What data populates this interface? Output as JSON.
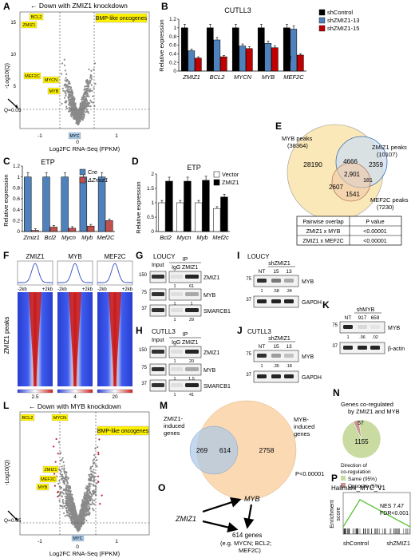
{
  "panels": {
    "A": {
      "letter": "A",
      "header": "← Down with ZMIZ1 knockdown",
      "header_gene": "ZMIZ1",
      "label_oncogenes": "BMP-like oncogenes",
      "genes": [
        "BCL2",
        "ZMIZ1",
        "MEF2C",
        "MYCN",
        "MYB",
        "MYC"
      ],
      "qlabel": "Q=0.05",
      "ylabel": "-Log10(Q)",
      "xlabel": "Log2FC RNA-Seq (FPKM)",
      "yticks": [
        "15",
        "10",
        "5"
      ],
      "xticks": [
        "-1",
        "0",
        "1"
      ]
    },
    "B": {
      "letter": "B",
      "title": "CUTLL3",
      "ylabel": "Relative expression",
      "legend": [
        "shControl",
        "shZMIZ1-13",
        "shZMIZ1-15"
      ],
      "yticks": [
        "0",
        "0.2",
        "0.4",
        "0.6",
        "0.8",
        "1",
        "1.2"
      ],
      "sig": [
        "ns"
      ]
    },
    "C": {
      "letter": "C",
      "title": "ETP",
      "ylabel": "Relative expression",
      "legend": [
        "Cre",
        "ΔZmiz1"
      ],
      "yticks": [
        "0",
        "0.2",
        "0.4",
        "0.6",
        "0.8",
        "1",
        "1.2"
      ]
    },
    "D": {
      "letter": "D",
      "title": "ETP",
      "ylabel": "Relative expression",
      "legend": [
        "Vector",
        "ZMIZ1"
      ],
      "yticks": [
        "0",
        "0.5",
        "1",
        "1.5",
        "2"
      ]
    },
    "E": {
      "letter": "E",
      "myb_label": "MYB peaks",
      "myb_count": "(38364)",
      "zmiz_label": "ZMIZ1 peaks",
      "zmiz_count": "(10107)",
      "mef_label": "MEF2C peaks",
      "mef_count": "(7230)",
      "regions": [
        "28190",
        "4666",
        "2359",
        "2,901",
        "181",
        "2607",
        "1541"
      ],
      "table_header": [
        "Pairwise overlap",
        "P value"
      ],
      "table_rows": [
        [
          "ZMIZ1 x MYB",
          "<0.00001"
        ],
        [
          "ZMIZ1 x MEF2C",
          "<0.00001"
        ]
      ]
    },
    "F": {
      "letter": "F",
      "cols": [
        "ZMIZ1",
        "MYB",
        "MEF2C"
      ],
      "axis_left": "-2kb",
      "axis_right": "+2kb",
      "ylabel": "ZMIZ1 peaks",
      "scale_max": [
        "2.5",
        "4",
        "20"
      ]
    },
    "G": {
      "letter": "G",
      "cell": "LOUCY",
      "input": "Input",
      "ip": "IP",
      "lanes": [
        "IgG",
        "ZMIZ1"
      ],
      "targets": [
        "ZMIZ1",
        "MYB",
        "SMARCB1"
      ],
      "markers": [
        "150",
        "75",
        "37"
      ],
      "quant": [
        [
          "1",
          "61"
        ],
        [
          "1",
          "1"
        ],
        [
          "1",
          "29"
        ]
      ]
    },
    "H": {
      "letter": "H",
      "cell": "CUTLL3",
      "input": "Input",
      "ip": "IP",
      "lanes": [
        "IgG",
        "ZMIZ1"
      ],
      "targets": [
        "ZMIZ1",
        "MYB",
        "SMARCB1"
      ],
      "markers": [
        "150",
        "75",
        "37"
      ],
      "quant": [
        [
          "1",
          "20"
        ],
        [
          "1",
          "1.5"
        ],
        [
          "1",
          "41"
        ]
      ]
    },
    "I": {
      "letter": "I",
      "cell": "LOUCY",
      "group": "shZMIZ1",
      "lanes": [
        "NT",
        "15",
        "13"
      ],
      "targets": [
        "MYB",
        "GAPDH"
      ],
      "markers": [
        "75",
        "37"
      ],
      "quant": [
        "1",
        ".58",
        ".34"
      ]
    },
    "J": {
      "letter": "J",
      "cell": "CUTLL3",
      "group": "shZMIZ1",
      "lanes": [
        "NT",
        "15",
        "13"
      ],
      "targets": [
        "MYB",
        "GAPDH"
      ],
      "markers": [
        "75",
        "37"
      ],
      "quant": [
        "1",
        ".35",
        ".18"
      ]
    },
    "K": {
      "letter": "K",
      "group": "shMYB",
      "lanes": [
        "NT",
        "917",
        "659"
      ],
      "targets": [
        "MYB",
        "β-actin"
      ],
      "markers": [
        "75",
        "37"
      ],
      "quant": [
        "1",
        ".06",
        ".02"
      ]
    },
    "L": {
      "letter": "L",
      "header": "← Down with MYB knockdown",
      "header_gene": "MYB",
      "label_oncogenes": "BMP-like oncogenes",
      "genes": [
        "BCL2",
        "MYCN",
        "ZMIZ1",
        "MEF2C",
        "MYB",
        "MYC"
      ],
      "qlabel": "Q=0.05",
      "ylabel": "-Log10(Q)",
      "xlabel": "Log2FC RNA-Seq (FPKM)",
      "xticks": [
        "-1",
        "0",
        "1"
      ]
    },
    "M": {
      "letter": "M",
      "left_label": [
        "ZMIZ1-",
        "induced",
        "genes"
      ],
      "right_label": [
        "MYB-",
        "induced",
        "genes"
      ],
      "values": [
        "269",
        "614",
        "2758"
      ],
      "pvalue": "P<0.00001"
    },
    "N": {
      "letter": "N",
      "title": [
        "Genes co-regulated",
        "by ZMIZ1 and MYB"
      ],
      "small": "57",
      "big": "1155",
      "legend_title": [
        "Direction of",
        "co-regulation"
      ],
      "legend": [
        "Same (95%)",
        "Opposite (5%)"
      ]
    },
    "O": {
      "letter": "O",
      "zmiz": "ZMIZ1",
      "myb": "MYB",
      "genes": "614 genes",
      "examples": "(e.g. MYCN; BCL2;",
      "examples2": "MEF2C)"
    },
    "P": {
      "letter": "P",
      "title": "Hallmark_MYC_V1",
      "nes": "NES 7.47",
      "fdr": "FDR<0.001",
      "ylabel": [
        "Enrichment",
        "score"
      ],
      "left": "shControl",
      "right": "shZMIZ1"
    }
  },
  "chart_data": [
    {
      "type": "bar",
      "panel": "B",
      "title": "CUTLL3",
      "ylabel": "Relative expression",
      "ylim": [
        0,
        1.2
      ],
      "categories": [
        "ZMIZ1",
        "BCL2",
        "MYCN",
        "MYB",
        "MEF2C"
      ],
      "series": [
        {
          "name": "shControl",
          "values": [
            1.0,
            1.0,
            1.0,
            1.0,
            1.0
          ],
          "color": "#000000"
        },
        {
          "name": "shZMIZ1-13",
          "values": [
            0.47,
            0.72,
            0.58,
            0.64,
            0.97
          ],
          "color": "#4f81bd"
        },
        {
          "name": "shZMIZ1-15",
          "values": [
            0.3,
            0.33,
            0.52,
            0.54,
            0.37
          ],
          "color": "#c00000"
        }
      ]
    },
    {
      "type": "bar",
      "panel": "C",
      "title": "ETP",
      "ylabel": "Relative expression",
      "ylim": [
        0,
        1.2
      ],
      "categories": [
        "Zmiz1",
        "Bcl2",
        "Mycn",
        "Myb",
        "Mef2C"
      ],
      "series": [
        {
          "name": "Cre",
          "values": [
            1.0,
            1.0,
            1.0,
            1.0,
            1.0
          ],
          "color": "#4f81bd"
        },
        {
          "name": "ΔZmiz1",
          "values": [
            0.02,
            0.08,
            0.06,
            0.1,
            0.2
          ],
          "color": "#c0504d"
        }
      ]
    },
    {
      "type": "bar",
      "panel": "D",
      "title": "ETP",
      "ylabel": "Relative expression",
      "ylim": [
        0,
        2
      ],
      "categories": [
        "Bcl2",
        "Mycn",
        "Myb",
        "Mef2c"
      ],
      "series": [
        {
          "name": "Vector",
          "values": [
            1.0,
            1.0,
            1.0,
            0.8
          ],
          "color": "#ffffff"
        },
        {
          "name": "ZMIZ1",
          "values": [
            1.75,
            1.75,
            1.78,
            1.2
          ],
          "color": "#000000"
        }
      ]
    },
    {
      "type": "pie",
      "panel": "N",
      "categories": [
        "Same (95%)",
        "Opposite (5%)"
      ],
      "values": [
        1155,
        57
      ],
      "colors": [
        "#c9dba1",
        "#c99494"
      ]
    }
  ]
}
